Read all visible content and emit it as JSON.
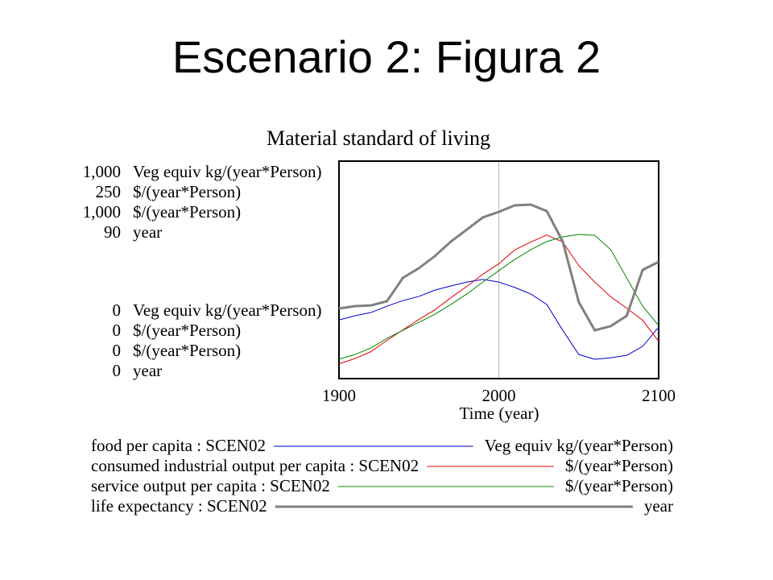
{
  "title": "Escenario 2: Figura 2",
  "chart_data": {
    "type": "line",
    "title": "Material standard of living",
    "xlabel": "Time (year)",
    "xlim": [
      1900,
      2100
    ],
    "xticks": [
      1900,
      2000,
      2100
    ],
    "grid": true,
    "x": [
      1900,
      1910,
      1920,
      1930,
      1940,
      1950,
      1960,
      1970,
      1980,
      1990,
      2000,
      2010,
      2020,
      2030,
      2040,
      2050,
      2060,
      2070,
      2080,
      2090,
      2100
    ],
    "series": [
      {
        "name": "food per capita : SCEN02",
        "unit": "Veg equiv kg/(year*Person)",
        "color": "#0000cc",
        "width": 1,
        "ylim": [
          0,
          1000
        ],
        "yticks": [
          0,
          {
            "value": 1000,
            "label": "1,000"
          }
        ],
        "values": [
          270,
          289,
          304,
          333,
          359,
          378,
          407,
          426,
          444,
          456,
          444,
          419,
          389,
          341,
          222,
          111,
          89,
          96,
          107,
          148,
          237
        ]
      },
      {
        "name": "consumed industrial output per capita : SCEN02",
        "unit": "$/(year*Person)",
        "color": "#e00000",
        "width": 1,
        "ylim": [
          0,
          250
        ],
        "yticks": [
          0,
          250
        ],
        "values": [
          17,
          23,
          31,
          44,
          56,
          68,
          79,
          93,
          106,
          120,
          132,
          148,
          157,
          165,
          157,
          130,
          111,
          94,
          81,
          67,
          43
        ]
      },
      {
        "name": "service output per capita : SCEN02",
        "unit": "$/(year*Person)",
        "color": "#008800",
        "width": 1,
        "ylim": [
          0,
          1000
        ],
        "yticks": [
          0,
          {
            "value": 1000,
            "label": "1,000"
          }
        ],
        "values": [
          89,
          111,
          141,
          185,
          222,
          259,
          296,
          341,
          389,
          444,
          496,
          548,
          593,
          630,
          652,
          663,
          659,
          593,
          463,
          333,
          244
        ]
      },
      {
        "name": "life expectancy : SCEN02",
        "unit": "year",
        "color": "#808080",
        "width": 3,
        "ylim": [
          0,
          90
        ],
        "yticks": [
          0,
          90
        ],
        "values": [
          29,
          30,
          30.3,
          32,
          41.7,
          45.7,
          50.7,
          56.7,
          61.7,
          66.7,
          69,
          71.7,
          72,
          69.3,
          56.7,
          31.7,
          20,
          21.7,
          26,
          45,
          48.3
        ]
      }
    ]
  }
}
